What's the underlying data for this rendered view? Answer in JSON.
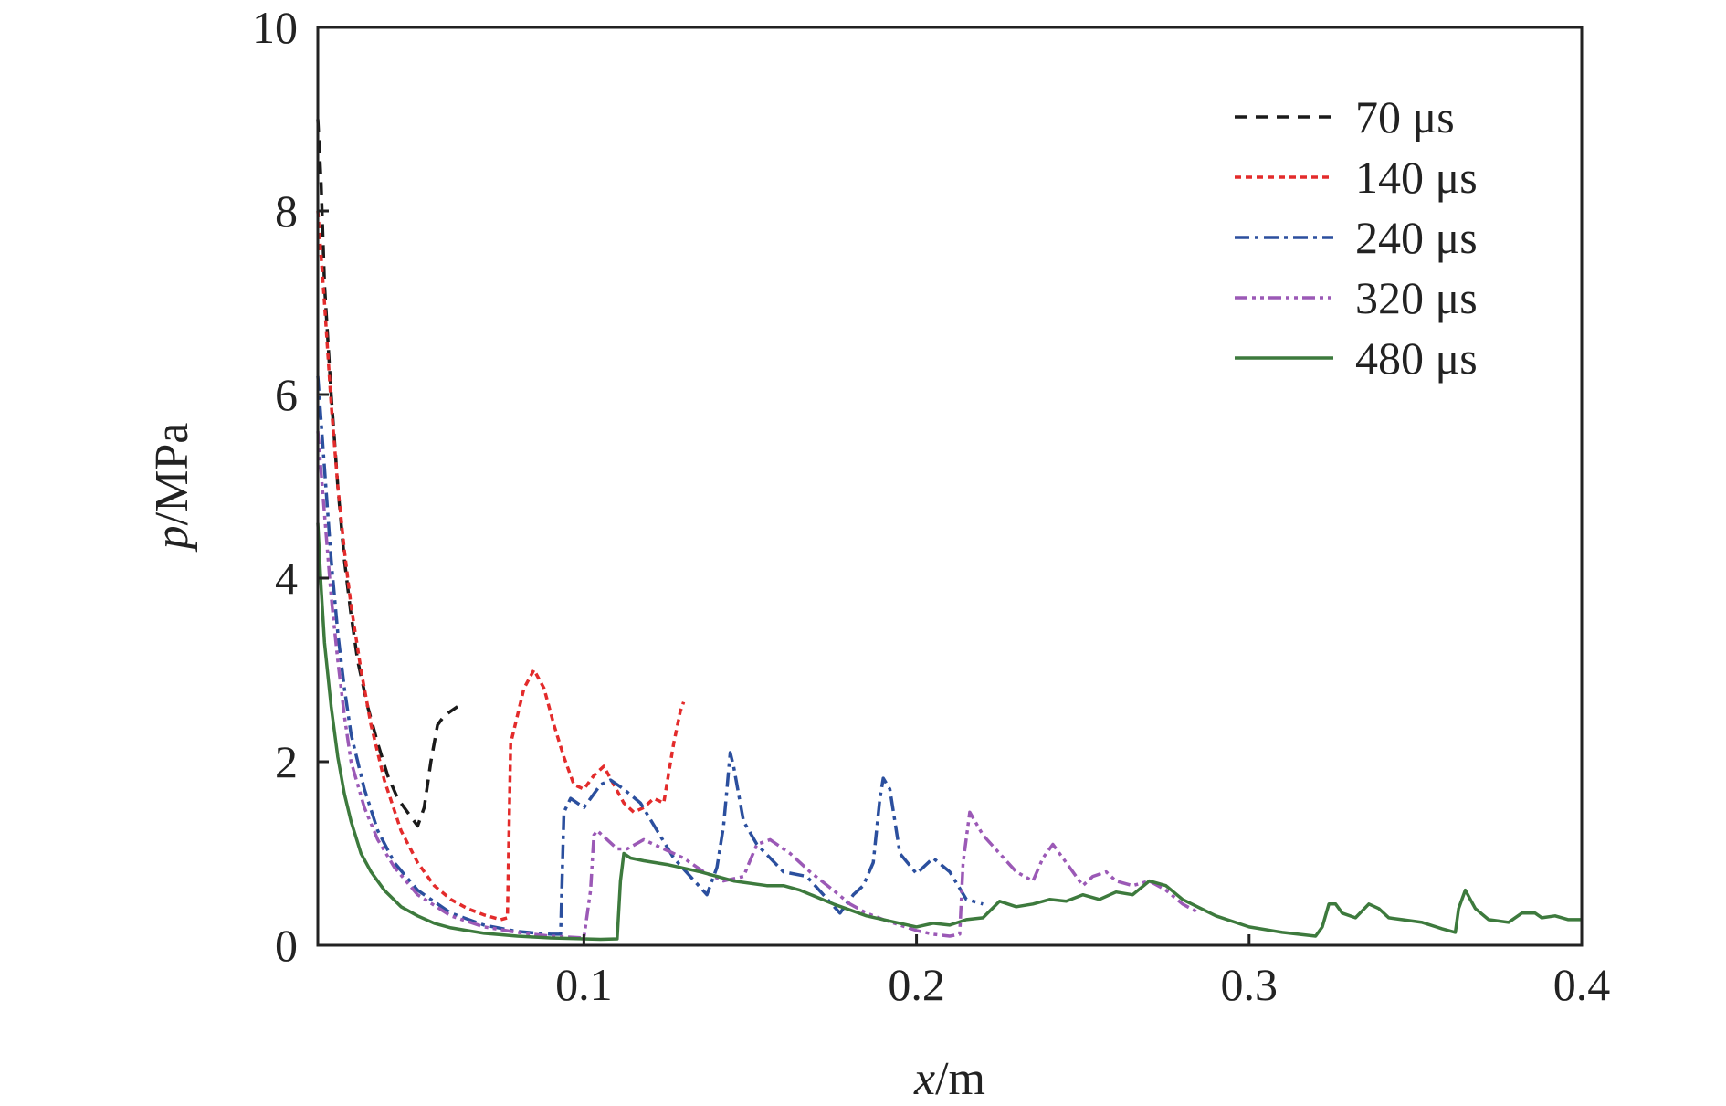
{
  "chart_data": {
    "type": "line",
    "xlabel": "x/m",
    "xlabel_var": "x",
    "xlabel_unit": "/m",
    "ylabel": "p/MPa",
    "ylabel_var": "p",
    "ylabel_unit": "/MPa",
    "xlim": [
      0.02,
      0.4
    ],
    "ylim": [
      0,
      10
    ],
    "xticks": [
      0.1,
      0.2,
      0.3,
      0.4
    ],
    "xtick_labels": [
      "0.1",
      "0.2",
      "0.3",
      "0.4"
    ],
    "yticks": [
      0,
      2,
      4,
      6,
      8,
      10
    ],
    "ytick_labels": [
      "0",
      "2",
      "4",
      "6",
      "8",
      "10"
    ],
    "grid": false,
    "legend_position": "top-right",
    "series": [
      {
        "name": "70 μs",
        "color": "#1a1a1a",
        "dash": "14,9",
        "x": [
          0.02,
          0.021,
          0.022,
          0.024,
          0.026,
          0.028,
          0.03,
          0.032,
          0.035,
          0.038,
          0.041,
          0.044,
          0.047,
          0.05,
          0.052,
          0.054,
          0.056,
          0.058,
          0.06,
          0.062
        ],
        "y": [
          9.0,
          8.3,
          7.2,
          6.0,
          5.0,
          4.2,
          3.6,
          3.1,
          2.6,
          2.2,
          1.85,
          1.6,
          1.45,
          1.3,
          1.5,
          2.0,
          2.4,
          2.5,
          2.55,
          2.6
        ]
      },
      {
        "name": "140 μs",
        "color": "#e32b2b",
        "dash": "7,5",
        "x": [
          0.02,
          0.022,
          0.024,
          0.026,
          0.028,
          0.03,
          0.033,
          0.036,
          0.04,
          0.045,
          0.05,
          0.055,
          0.06,
          0.065,
          0.07,
          0.075,
          0.077,
          0.078,
          0.079,
          0.08,
          0.082,
          0.085,
          0.088,
          0.091,
          0.094,
          0.097,
          0.1,
          0.103,
          0.106,
          0.109,
          0.112,
          0.115,
          0.118,
          0.121,
          0.124,
          0.127,
          0.129,
          0.13
        ],
        "y": [
          8.0,
          7.0,
          5.9,
          5.0,
          4.3,
          3.7,
          3.0,
          2.4,
          1.8,
          1.25,
          0.9,
          0.65,
          0.5,
          0.4,
          0.33,
          0.28,
          0.3,
          2.2,
          2.35,
          2.5,
          2.8,
          3.0,
          2.8,
          2.4,
          2.05,
          1.75,
          1.7,
          1.85,
          1.95,
          1.75,
          1.55,
          1.45,
          1.5,
          1.6,
          1.55,
          2.2,
          2.55,
          2.65
        ]
      },
      {
        "name": "240 μs",
        "color": "#2b4f9e",
        "dash": "16,6,4,6",
        "x": [
          0.02,
          0.022,
          0.024,
          0.026,
          0.028,
          0.03,
          0.034,
          0.038,
          0.043,
          0.05,
          0.06,
          0.07,
          0.08,
          0.09,
          0.093,
          0.094,
          0.096,
          0.1,
          0.105,
          0.108,
          0.112,
          0.117,
          0.122,
          0.127,
          0.132,
          0.137,
          0.14,
          0.142,
          0.143,
          0.144,
          0.145,
          0.148,
          0.152,
          0.16,
          0.167,
          0.172,
          0.177,
          0.181,
          0.184,
          0.187,
          0.189,
          0.19,
          0.192,
          0.195,
          0.2,
          0.205,
          0.21,
          0.215,
          0.22
        ],
        "y": [
          6.2,
          5.2,
          4.2,
          3.4,
          2.8,
          2.3,
          1.7,
          1.25,
          0.9,
          0.6,
          0.35,
          0.22,
          0.15,
          0.12,
          0.12,
          1.45,
          1.6,
          1.5,
          1.75,
          1.8,
          1.7,
          1.55,
          1.25,
          0.95,
          0.75,
          0.55,
          0.85,
          1.3,
          1.7,
          2.1,
          1.95,
          1.35,
          1.1,
          0.8,
          0.75,
          0.55,
          0.35,
          0.55,
          0.65,
          0.9,
          1.6,
          1.82,
          1.7,
          1.0,
          0.78,
          0.95,
          0.8,
          0.5,
          0.45
        ]
      },
      {
        "name": "320 μs",
        "color": "#9b59b6",
        "dash": "14,5,4,5,4,5",
        "x": [
          0.02,
          0.022,
          0.024,
          0.026,
          0.028,
          0.03,
          0.034,
          0.038,
          0.043,
          0.05,
          0.06,
          0.07,
          0.08,
          0.09,
          0.1,
          0.102,
          0.103,
          0.104,
          0.107,
          0.11,
          0.113,
          0.118,
          0.124,
          0.13,
          0.136,
          0.142,
          0.148,
          0.152,
          0.156,
          0.162,
          0.168,
          0.175,
          0.18,
          0.185,
          0.19,
          0.195,
          0.2,
          0.205,
          0.21,
          0.213,
          0.214,
          0.216,
          0.22,
          0.225,
          0.23,
          0.235,
          0.238,
          0.241,
          0.245,
          0.25,
          0.253,
          0.257,
          0.26,
          0.265,
          0.27,
          0.275,
          0.28,
          0.285
        ],
        "y": [
          5.6,
          4.7,
          3.8,
          3.1,
          2.5,
          2.0,
          1.5,
          1.15,
          0.85,
          0.55,
          0.32,
          0.2,
          0.14,
          0.1,
          0.08,
          0.6,
          1.2,
          1.25,
          1.15,
          1.05,
          1.05,
          1.15,
          1.05,
          0.95,
          0.8,
          0.7,
          0.75,
          1.1,
          1.15,
          1.0,
          0.8,
          0.6,
          0.45,
          0.35,
          0.28,
          0.22,
          0.16,
          0.12,
          0.1,
          0.12,
          0.9,
          1.45,
          1.2,
          1.0,
          0.8,
          0.7,
          0.95,
          1.1,
          0.9,
          0.65,
          0.75,
          0.8,
          0.7,
          0.65,
          0.7,
          0.6,
          0.45,
          0.35
        ]
      },
      {
        "name": "480 μs",
        "color": "#3d7a3d",
        "dash": "",
        "x": [
          0.02,
          0.021,
          0.022,
          0.024,
          0.026,
          0.028,
          0.03,
          0.033,
          0.036,
          0.04,
          0.045,
          0.05,
          0.055,
          0.06,
          0.07,
          0.08,
          0.09,
          0.1,
          0.105,
          0.11,
          0.111,
          0.112,
          0.114,
          0.118,
          0.125,
          0.135,
          0.145,
          0.155,
          0.16,
          0.165,
          0.175,
          0.185,
          0.195,
          0.2,
          0.205,
          0.21,
          0.215,
          0.22,
          0.225,
          0.23,
          0.235,
          0.24,
          0.245,
          0.25,
          0.255,
          0.26,
          0.265,
          0.27,
          0.275,
          0.28,
          0.29,
          0.3,
          0.31,
          0.32,
          0.322,
          0.324,
          0.326,
          0.328,
          0.332,
          0.336,
          0.339,
          0.342,
          0.346,
          0.352,
          0.358,
          0.362,
          0.363,
          0.365,
          0.368,
          0.372,
          0.378,
          0.382,
          0.386,
          0.388,
          0.392,
          0.396,
          0.4
        ],
        "y": [
          4.6,
          3.9,
          3.3,
          2.6,
          2.05,
          1.65,
          1.35,
          1.0,
          0.8,
          0.6,
          0.42,
          0.32,
          0.24,
          0.19,
          0.13,
          0.1,
          0.08,
          0.07,
          0.065,
          0.07,
          0.7,
          1.0,
          0.95,
          0.92,
          0.88,
          0.8,
          0.7,
          0.65,
          0.65,
          0.6,
          0.45,
          0.32,
          0.24,
          0.2,
          0.24,
          0.22,
          0.28,
          0.3,
          0.48,
          0.42,
          0.45,
          0.5,
          0.48,
          0.55,
          0.5,
          0.58,
          0.55,
          0.7,
          0.65,
          0.5,
          0.32,
          0.2,
          0.14,
          0.1,
          0.2,
          0.45,
          0.45,
          0.35,
          0.3,
          0.45,
          0.4,
          0.3,
          0.28,
          0.25,
          0.18,
          0.14,
          0.4,
          0.6,
          0.4,
          0.28,
          0.25,
          0.35,
          0.35,
          0.3,
          0.32,
          0.28,
          0.28
        ]
      }
    ]
  }
}
